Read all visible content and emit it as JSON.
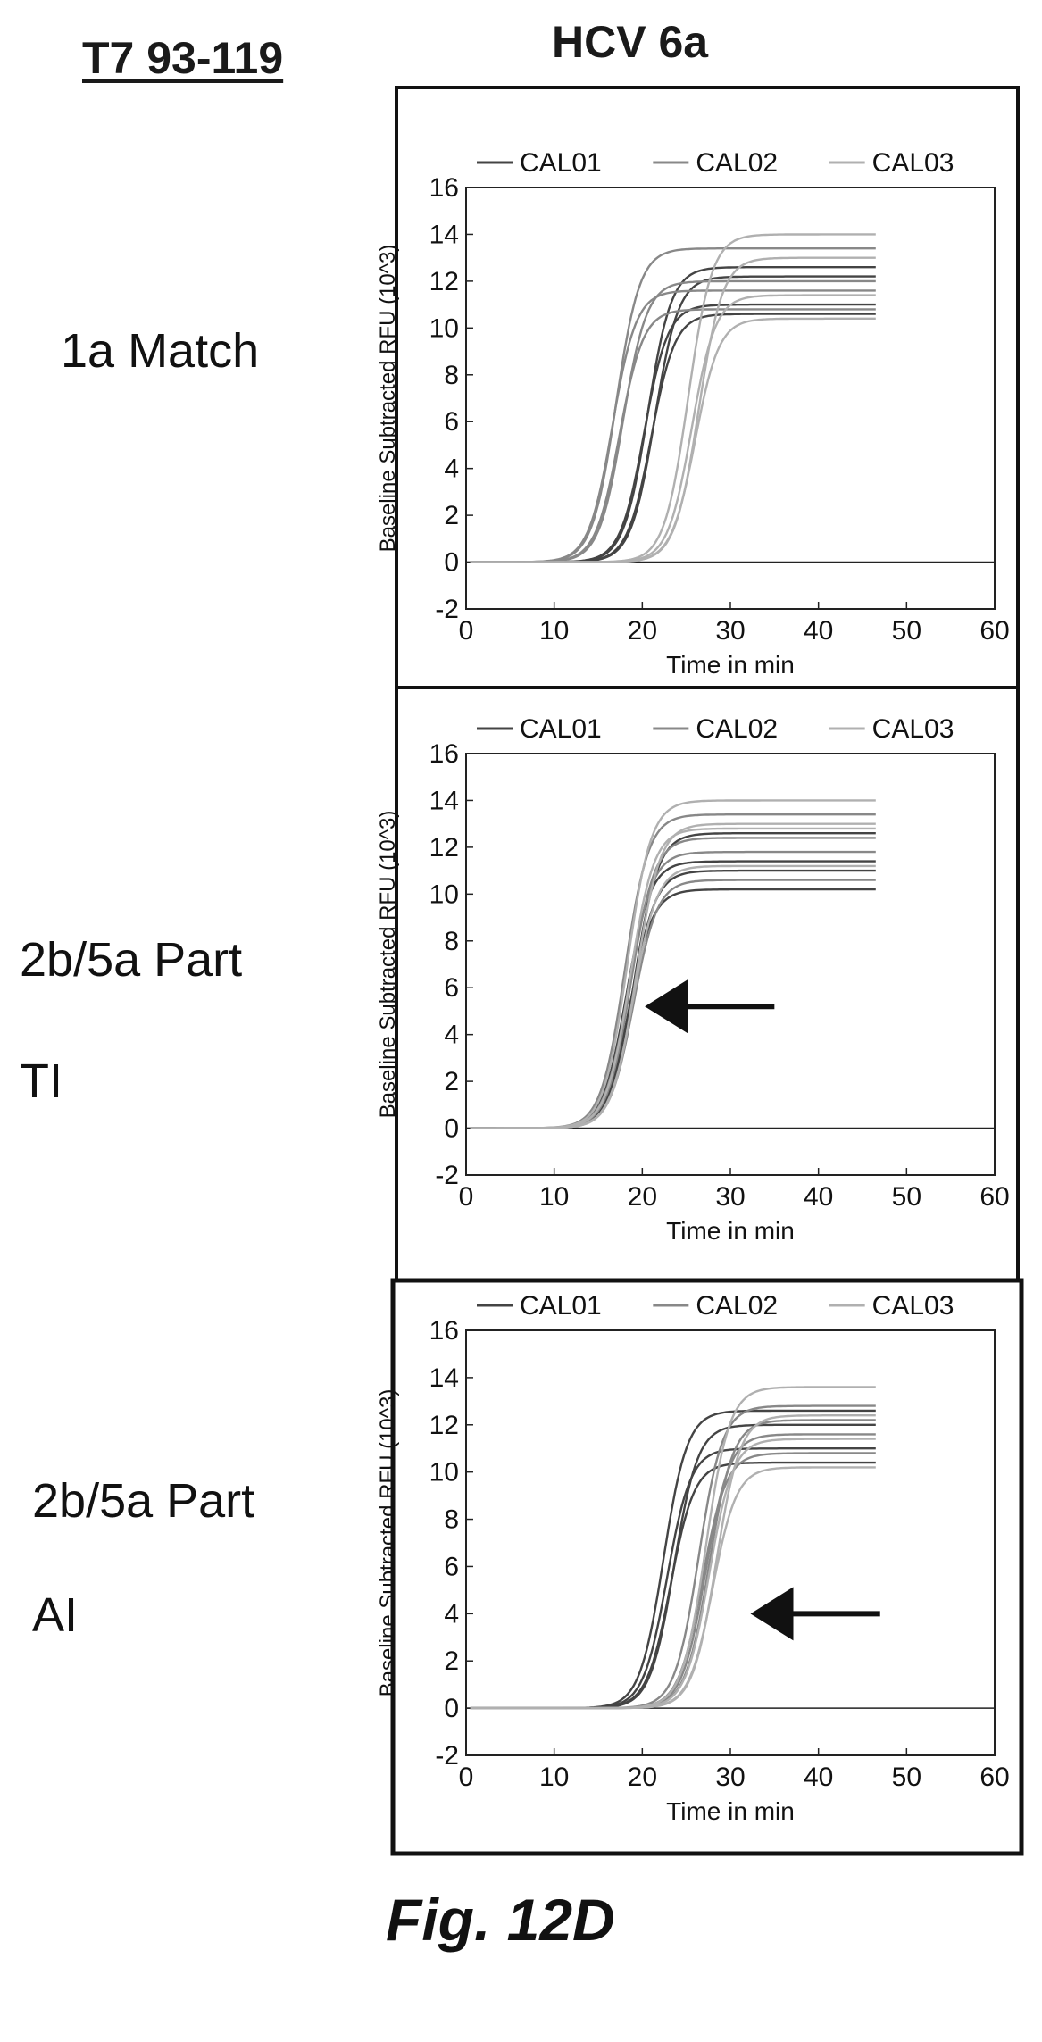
{
  "figure": {
    "left_title": "T7 93-119",
    "top_title": "HCV 6a",
    "caption": "Fig. 12D"
  },
  "rows": [
    {
      "label_lines": [
        "1a Match"
      ]
    },
    {
      "label_lines": [
        "2b/5a Part",
        "TI"
      ]
    },
    {
      "label_lines": [
        "2b/5a Part",
        "AI"
      ]
    }
  ],
  "chart_data": [
    {
      "type": "line",
      "xlabel": "Time in min",
      "ylabel": "Baseline Subtracted RFU (10^3)",
      "xlim": [
        0,
        60
      ],
      "ylim": [
        -2,
        16
      ],
      "xticks": [
        0,
        10,
        20,
        30,
        40,
        50,
        60
      ],
      "yticks": [
        -2,
        0,
        2,
        4,
        6,
        8,
        10,
        12,
        14,
        16
      ],
      "legend": [
        "CAL01",
        "CAL02",
        "CAL03"
      ],
      "legend_position": "top",
      "annotation_arrow": null,
      "series": [
        {
          "name": "CAL01",
          "color": "#444444",
          "midpoints": [
            20.2,
            20.6,
            21.0,
            21.4
          ],
          "plateaus": [
            11.0,
            12.6,
            10.6,
            12.2
          ]
        },
        {
          "name": "CAL02",
          "color": "#888888",
          "midpoints": [
            16.6,
            17.0,
            17.4,
            17.8
          ],
          "plateaus": [
            11.6,
            13.4,
            10.8,
            12.0
          ]
        },
        {
          "name": "CAL03",
          "color": "#b0b0b0",
          "midpoints": [
            25.2,
            25.6,
            26.0,
            26.4
          ],
          "plateaus": [
            14.0,
            11.4,
            10.4,
            13.0
          ]
        }
      ]
    },
    {
      "type": "line",
      "xlabel": "Time in min",
      "ylabel": "Baseline Subtracted RFU (10^3)",
      "xlim": [
        0,
        60
      ],
      "ylim": [
        -2,
        16
      ],
      "xticks": [
        0,
        10,
        20,
        30,
        40,
        50,
        60
      ],
      "yticks": [
        -2,
        0,
        2,
        4,
        6,
        8,
        10,
        12,
        14,
        16
      ],
      "legend": [
        "CAL01",
        "CAL02",
        "CAL03"
      ],
      "legend_position": "top",
      "annotation_arrow": {
        "from": [
          35,
          5.2
        ],
        "to": [
          21.5,
          5.2
        ]
      },
      "series": [
        {
          "name": "CAL01",
          "color": "#444444",
          "midpoints": [
            18.2,
            18.5,
            18.8,
            19.1
          ],
          "plateaus": [
            11.4,
            10.2,
            11.0,
            12.6
          ]
        },
        {
          "name": "CAL02",
          "color": "#888888",
          "midpoints": [
            18.0,
            18.4,
            18.7,
            19.0
          ],
          "plateaus": [
            13.4,
            11.8,
            12.4,
            10.6
          ]
        },
        {
          "name": "CAL03",
          "color": "#b0b0b0",
          "midpoints": [
            18.3,
            18.6,
            19.0,
            19.3
          ],
          "plateaus": [
            14.0,
            12.8,
            11.2,
            13.0
          ]
        }
      ]
    },
    {
      "type": "line",
      "xlabel": "Time in min",
      "ylabel": "Baseline Subtracted RFU (10^3)",
      "xlim": [
        0,
        60
      ],
      "ylim": [
        -2,
        16
      ],
      "xticks": [
        0,
        10,
        20,
        30,
        40,
        50,
        60
      ],
      "yticks": [
        -2,
        0,
        2,
        4,
        6,
        8,
        10,
        12,
        14,
        16
      ],
      "legend": [
        "CAL01",
        "CAL02",
        "CAL03"
      ],
      "legend_position": "top",
      "annotation_arrow": {
        "from": [
          47,
          4.0
        ],
        "to": [
          33.5,
          4.0
        ]
      },
      "series": [
        {
          "name": "CAL01",
          "color": "#444444",
          "midpoints": [
            22.4,
            22.8,
            23.2,
            23.6
          ],
          "plateaus": [
            12.6,
            11.0,
            10.4,
            12.0
          ]
        },
        {
          "name": "CAL02",
          "color": "#888888",
          "midpoints": [
            26.4,
            26.8,
            27.2,
            27.6
          ],
          "plateaus": [
            12.8,
            10.8,
            11.6,
            12.2
          ]
        },
        {
          "name": "CAL03",
          "color": "#b0b0b0",
          "midpoints": [
            27.2,
            27.6,
            28.0,
            28.4
          ],
          "plateaus": [
            13.6,
            11.4,
            10.2,
            12.4
          ]
        }
      ]
    }
  ]
}
